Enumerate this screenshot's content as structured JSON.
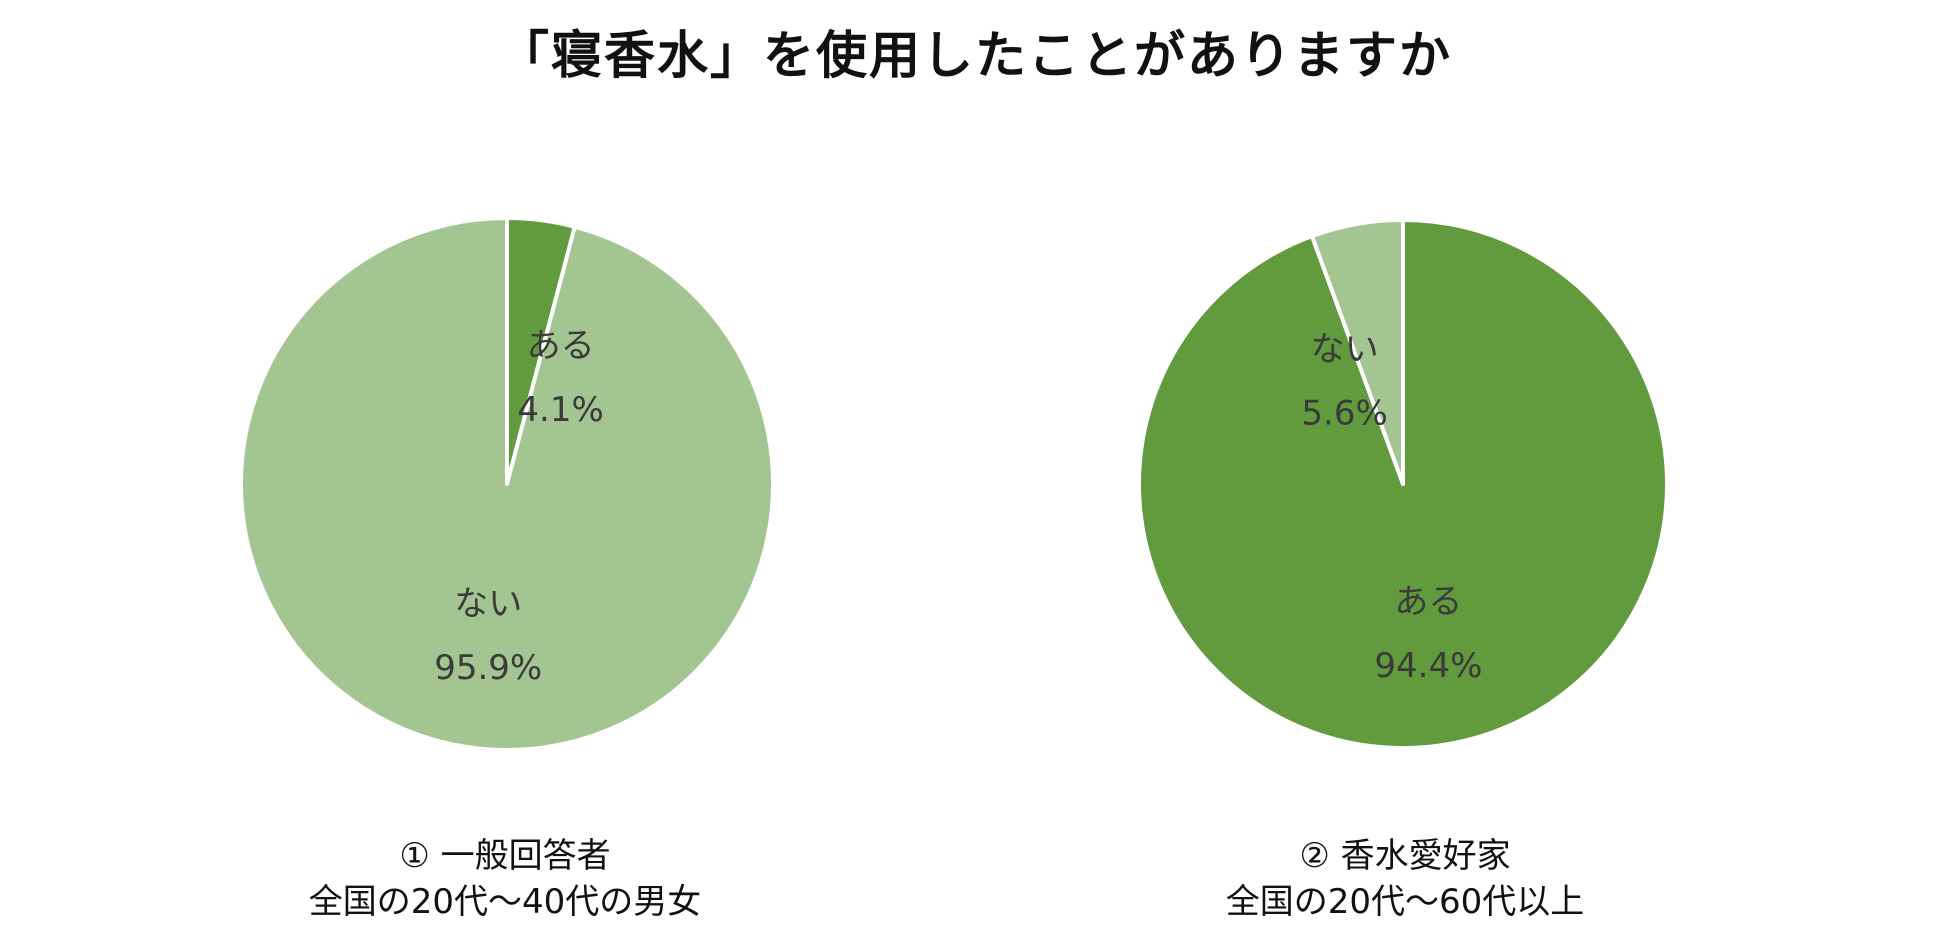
{
  "title": "「寝香水」を使用したことがありますか",
  "colors": {
    "yes": "#629a3e",
    "no": "#a3c591",
    "border": "#ffffff",
    "label": "#3a3a3a"
  },
  "chart_data": [
    {
      "type": "pie",
      "title": "",
      "slices": [
        {
          "name": "ある",
          "value": 4.1,
          "value_label": "4.1%",
          "color": "#629a3e"
        },
        {
          "name": "ない",
          "value": 95.9,
          "value_label": "95.9%",
          "color": "#a3c591"
        }
      ],
      "caption": {
        "line1": "① 一般回答者",
        "line2": "全国の20代～40代の男女"
      }
    },
    {
      "type": "pie",
      "title": "",
      "slices": [
        {
          "name": "ある",
          "value": 94.4,
          "value_label": "94.4%",
          "color": "#629a3e"
        },
        {
          "name": "ない",
          "value": 5.6,
          "value_label": "5.6%",
          "color": "#a3c591"
        }
      ],
      "caption": {
        "line1": "② 香水愛好家",
        "line2": "全国の20代～60代以上"
      }
    }
  ]
}
